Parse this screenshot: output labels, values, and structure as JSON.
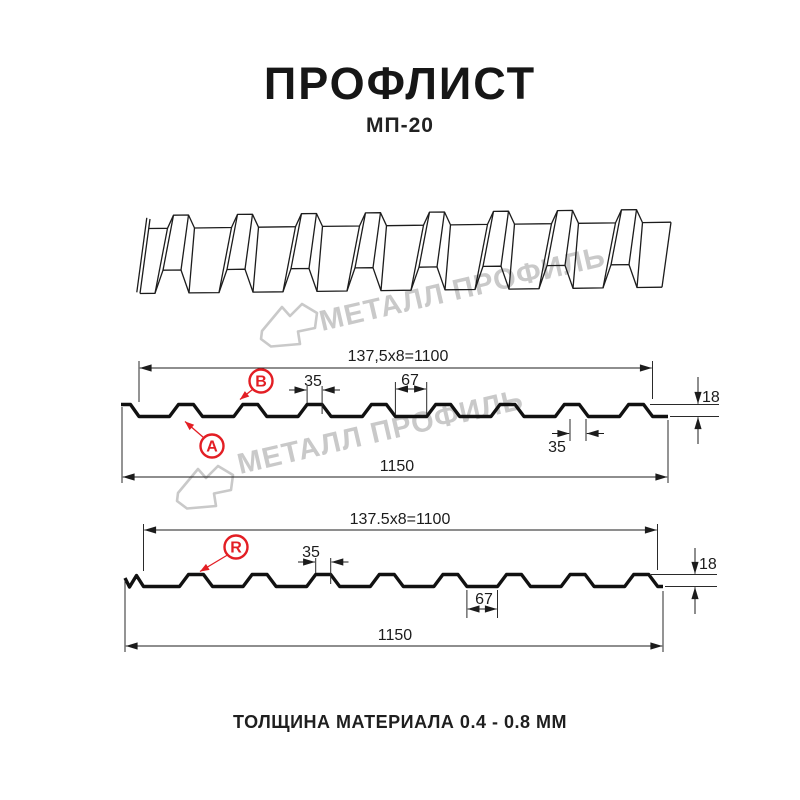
{
  "header": {
    "title": "ПРОФЛИСТ",
    "subtitle": "МП-20"
  },
  "watermark": {
    "brand": "МЕТАЛЛ ПРОФИЛЬ",
    "color": "#c9c9c9"
  },
  "colors": {
    "accent_red": "#e31e24",
    "line": "#1c1c1c"
  },
  "section_a": {
    "coverage": "137,5x8=1100",
    "width_total": "1150",
    "dim_rib_top": "35",
    "dim_pitch": "67",
    "dim_height": "18",
    "dim_rib_bottom": "35",
    "label_a": "А",
    "label_b": "В"
  },
  "section_r": {
    "coverage": "137.5x8=1100",
    "width_total": "1150",
    "dim_rib_top": "35",
    "dim_pitch": "67",
    "dim_height": "18",
    "label_r": "R"
  },
  "footer": {
    "note": "ТОЛЩИНА МАТЕРИАЛА 0.4 - 0.8 ММ"
  }
}
